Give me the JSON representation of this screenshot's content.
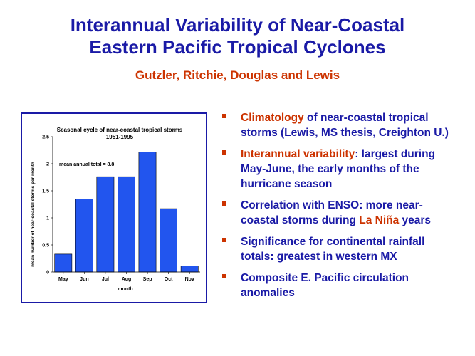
{
  "slide": {
    "title_line1": "Interannual Variability of Near-Coastal",
    "title_line2": "Eastern Pacific Tropical Cyclones",
    "authors": "Gutzler, Ritchie, Douglas and Lewis"
  },
  "bullets": [
    {
      "highlight": "Climatology",
      "rest": " of near-coastal tropical storms (Lewis, MS thesis, Creighton U.)"
    },
    {
      "highlight": "Interannual variability",
      "rest": ": largest during May-June, the early months of the hurricane season"
    },
    {
      "pre": "Correlation with ENSO: more near-coastal storms during ",
      "highlight": "La Niña",
      "post": " years"
    },
    {
      "text": "Significance for continental rainfall totals: greatest in western MX"
    },
    {
      "text": "Composite E. Pacific circulation anomalies"
    }
  ],
  "colors": {
    "title": "#1a1aa6",
    "accent": "#cc3300",
    "bar": "#2255ee"
  },
  "chart_data": {
    "type": "bar",
    "title": "Seasonal cycle of near-coastal tropical storms",
    "subtitle": "1951-1995",
    "annotation": "mean annual total = 8.8",
    "xlabel": "month",
    "ylabel": "mean number of near-coastal storms per month",
    "categories": [
      "May",
      "Jun",
      "Jul",
      "Aug",
      "Sep",
      "Oct",
      "Nov"
    ],
    "values": [
      0.33,
      1.35,
      1.76,
      1.76,
      2.22,
      1.17,
      0.11
    ],
    "ylim": [
      0,
      2.5
    ],
    "yticks": [
      "0",
      "0.5",
      "1",
      "1.5",
      "2",
      "2.5"
    ],
    "grid": false,
    "legend": "none"
  }
}
